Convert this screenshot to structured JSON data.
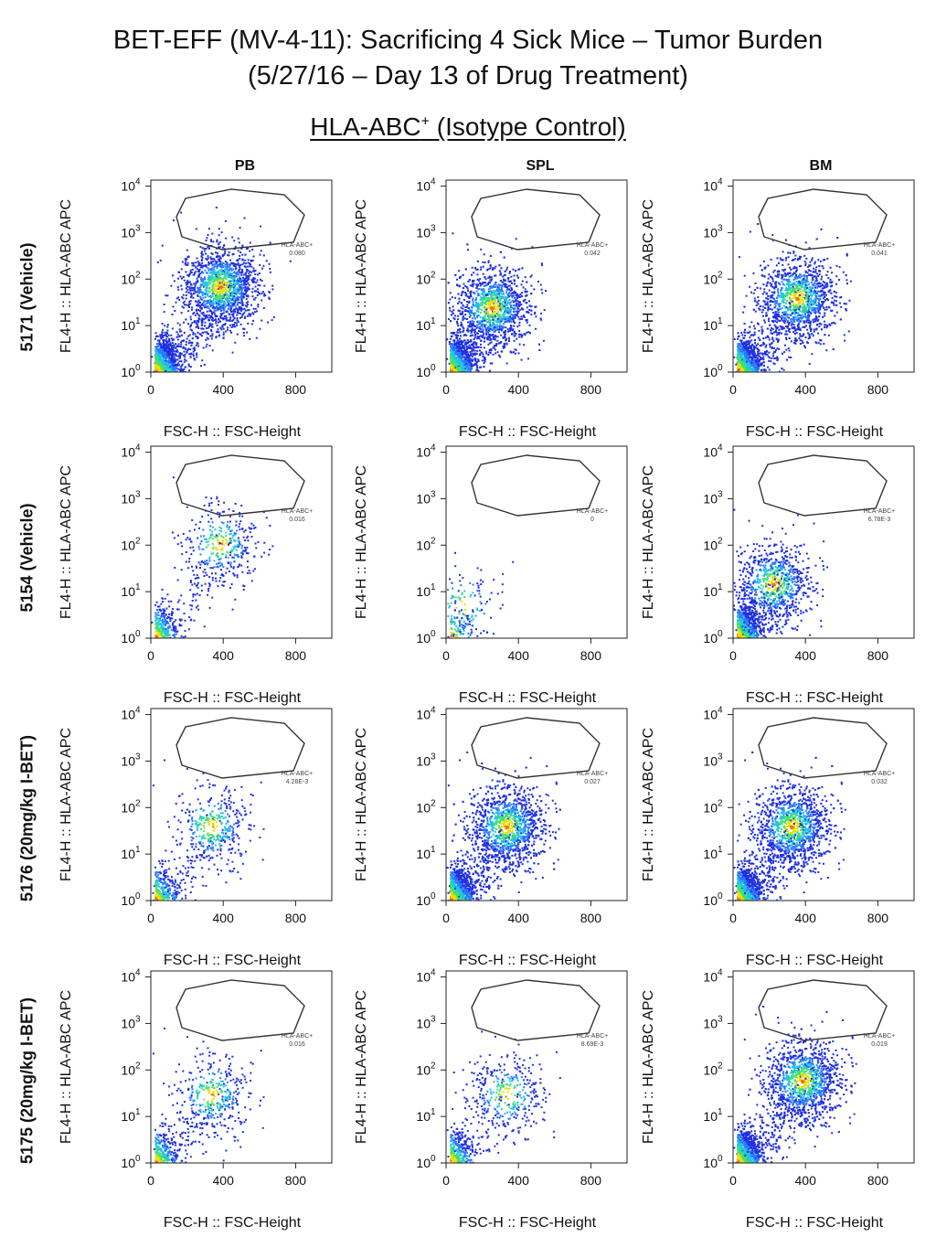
{
  "title_line1": "BET-EFF (MV-4-11): Sacrificing 4 Sick Mice – Tumor Burden",
  "title_line2": "(5/27/16 – Day 13 of Drug Treatment)",
  "subtitle_main": "HLA-ABC",
  "subtitle_sup": "+",
  "subtitle_tail": " (Isotype Control)",
  "columns": [
    "PB",
    "SPL",
    "BM"
  ],
  "rows": [
    "5171 (Vehicle)",
    "5154 (Vehicle)",
    "5176 (20mg/kg I-BET)",
    "5175 (20mg/kg I-BET)"
  ],
  "chart_data": {
    "type": "scatter",
    "xlabel": "FSC-H :: FSC-Height",
    "ylabel": "FL4-H :: HLA-ABC APC",
    "xlim": [
      0,
      1000
    ],
    "xticks": [
      0,
      400,
      800
    ],
    "ylim": [
      1,
      10000
    ],
    "yscale": "log",
    "yticks": [
      "10^0",
      "10^1",
      "10^2",
      "10^3",
      "10^4"
    ],
    "gate_label": "HLA-ABC+",
    "panels": [
      {
        "row": "5171 (Vehicle)",
        "column": "PB",
        "gate_value": "0.080",
        "density": "high",
        "cluster": [
          380,
          70
        ]
      },
      {
        "row": "5171 (Vehicle)",
        "column": "SPL",
        "gate_value": "0.042",
        "density": "high",
        "cluster": [
          250,
          25
        ]
      },
      {
        "row": "5171 (Vehicle)",
        "column": "BM",
        "gate_value": "0.041",
        "density": "high",
        "cluster": [
          350,
          40
        ]
      },
      {
        "row": "5154 (Vehicle)",
        "column": "PB",
        "gate_value": "0.016",
        "density": "low",
        "cluster": [
          380,
          110
        ]
      },
      {
        "row": "5154 (Vehicle)",
        "column": "SPL",
        "gate_value": "0",
        "density": "very-low",
        "cluster": [
          90,
          5
        ]
      },
      {
        "row": "5154 (Vehicle)",
        "column": "BM",
        "gate_value": "6.78E-3",
        "density": "medium",
        "cluster": [
          220,
          15
        ]
      },
      {
        "row": "5176 (20mg/kg I-BET)",
        "column": "PB",
        "gate_value": "4.28E-3",
        "density": "low",
        "cluster": [
          330,
          40
        ]
      },
      {
        "row": "5176 (20mg/kg I-BET)",
        "column": "SPL",
        "gate_value": "0.027",
        "density": "high",
        "cluster": [
          330,
          40
        ]
      },
      {
        "row": "5176 (20mg/kg I-BET)",
        "column": "BM",
        "gate_value": "0.032",
        "density": "high",
        "cluster": [
          320,
          40
        ]
      },
      {
        "row": "5175 (20mg/kg I-BET)",
        "column": "PB",
        "gate_value": "0.016",
        "density": "low",
        "cluster": [
          330,
          30
        ]
      },
      {
        "row": "5175 (20mg/kg I-BET)",
        "column": "SPL",
        "gate_value": "8.69E-3",
        "density": "low",
        "cluster": [
          330,
          30
        ]
      },
      {
        "row": "5175 (20mg/kg I-BET)",
        "column": "BM",
        "gate_value": "0.019",
        "density": "high",
        "cluster": [
          380,
          60
        ]
      }
    ]
  }
}
